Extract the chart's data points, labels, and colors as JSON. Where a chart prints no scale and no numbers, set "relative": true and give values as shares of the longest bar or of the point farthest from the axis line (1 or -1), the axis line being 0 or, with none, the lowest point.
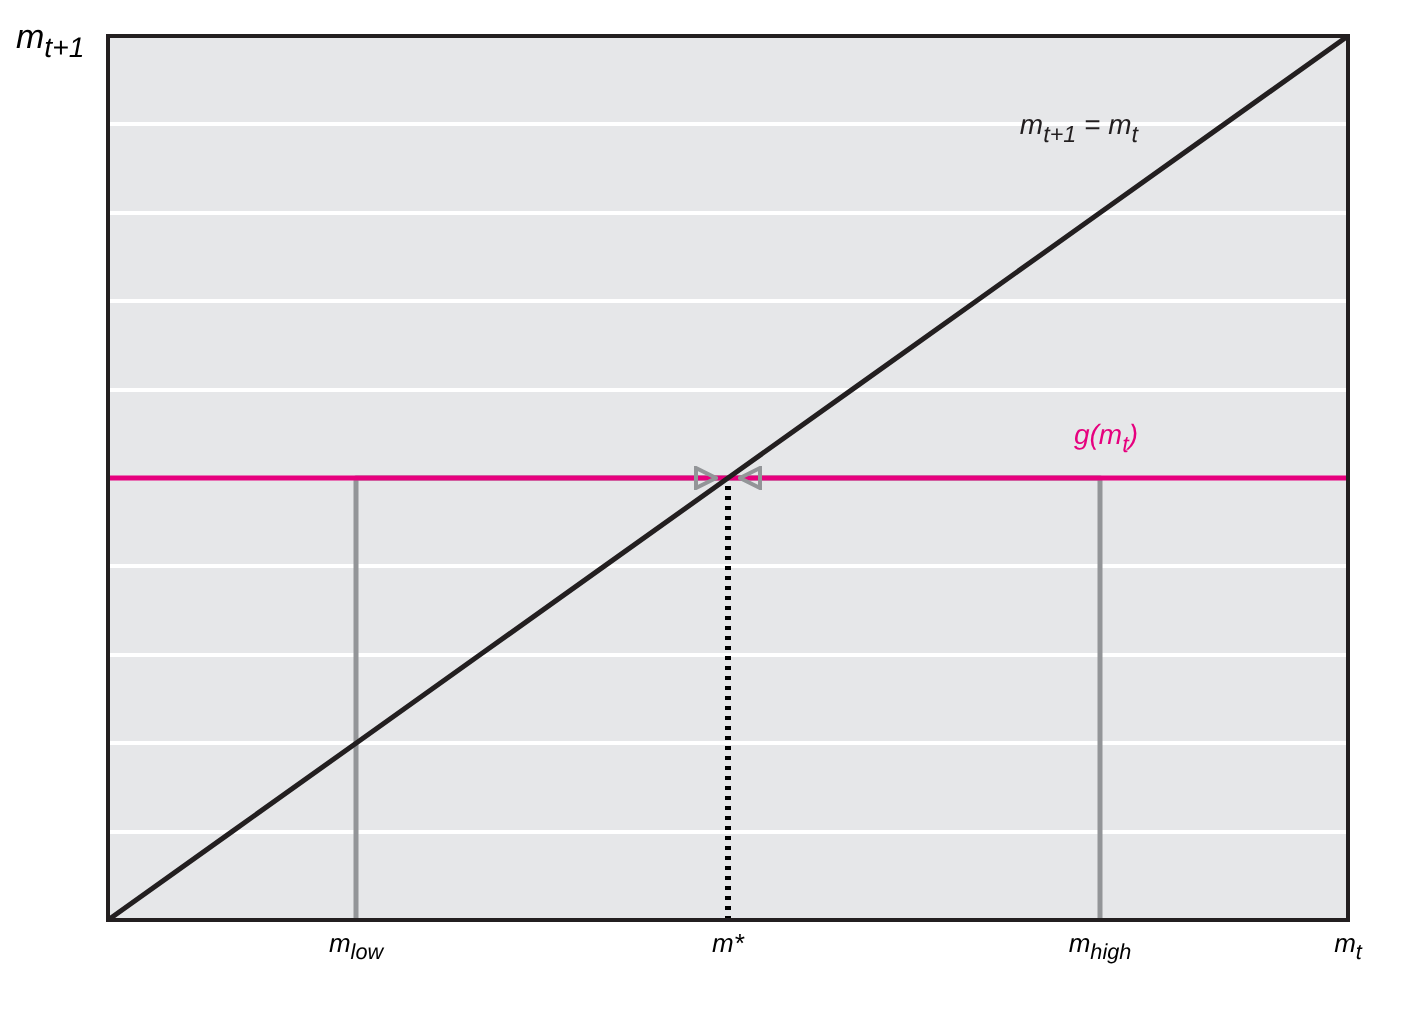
{
  "chart_data": {
    "type": "line",
    "relative": true,
    "ylabel": "m$_{t+1}$",
    "categories": [
      null,
      null,
      "m$_{low}$",
      null,
      null,
      "m*",
      null,
      null,
      "m$_{high}$",
      null,
      "m$_{t}$"
    ],
    "grid": "y",
    "marker": "none",
    "series": [
      {
        "name": "m$_{t+1}$ = m$_{t}$",
        "color": "#231f20",
        "values": [
          0,
          0.1,
          0.2,
          0.3,
          0.4,
          0.5,
          0.6,
          0.7,
          0.8,
          0.9,
          1
        ]
      },
      {
        "name": "g(m$_{t}$)",
        "color": "#e6007e",
        "values": [
          0.5,
          0.5,
          0.5,
          0.5,
          0.5,
          0.5,
          0.5,
          0.5,
          0.5,
          0.5,
          0.5
        ]
      },
      {
        "color": "#939598",
        "x": [
          "m$_{low}$",
          "m$_{low}$",
          "m$_{high}$",
          "m$_{high}$"
        ],
        "values": [
          0,
          0.5,
          0.5,
          0
        ]
      },
      {
        "color": "#000000",
        "x": [
          "m*",
          "m*"
        ],
        "values": [
          0,
          0.5
        ],
        "line_style": "dotted"
      }
    ]
  }
}
